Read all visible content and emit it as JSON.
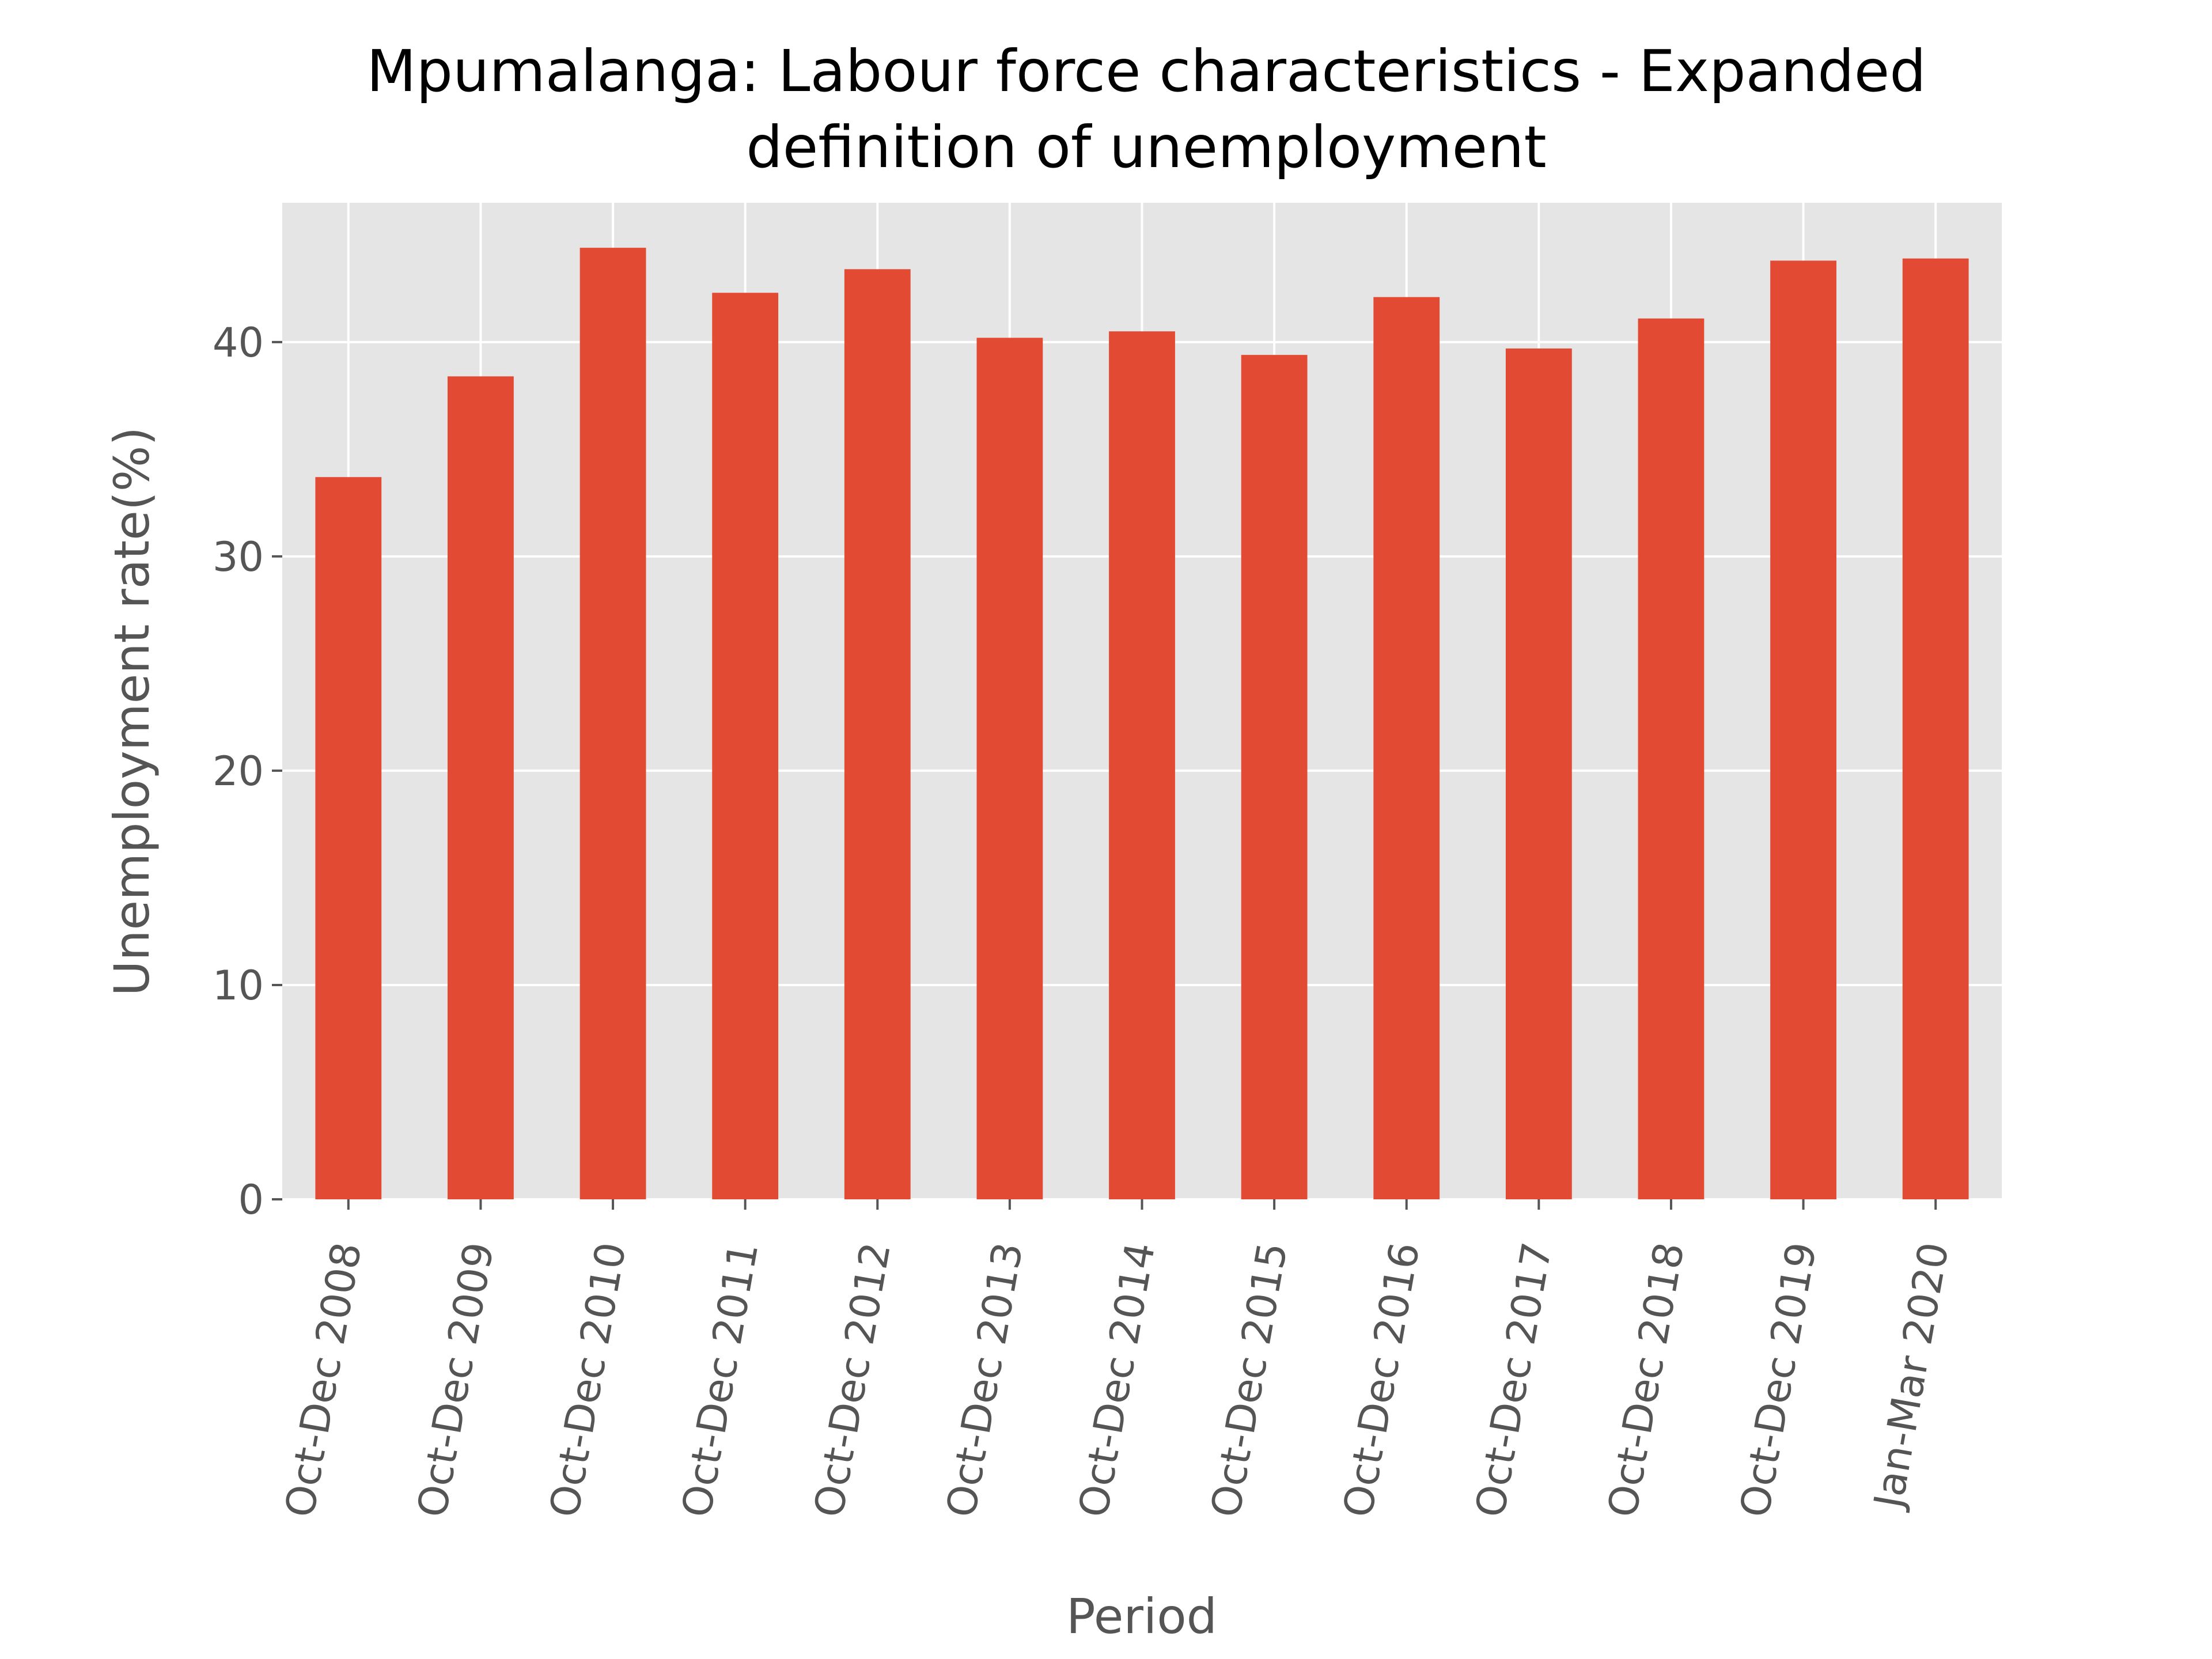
{
  "chart_data": {
    "type": "bar",
    "title_lines": [
      "Mpumalanga: Labour force characteristics - Expanded",
      "definition of unemployment"
    ],
    "xlabel": "Period",
    "ylabel": "Unemployment rate(%)",
    "categories": [
      "Oct-Dec 2008",
      "Oct-Dec 2009",
      "Oct-Dec 2010",
      "Oct-Dec 2011",
      "Oct-Dec 2012",
      "Oct-Dec 2013",
      "Oct-Dec 2014",
      "Oct-Dec 2015",
      "Oct-Dec 2016",
      "Oct-Dec 2017",
      "Oct-Dec 2018",
      "Oct-Dec 2019",
      "Jan-Mar 2020"
    ],
    "values": [
      33.7,
      38.4,
      44.4,
      42.3,
      43.4,
      40.2,
      40.5,
      39.4,
      42.1,
      39.7,
      41.1,
      43.8,
      43.9
    ],
    "ylim": [
      0,
      46.5
    ],
    "yticks": [
      0,
      10,
      20,
      30,
      40
    ],
    "grid": true,
    "legend": "none",
    "colors": {
      "bar": "#E24A33",
      "plot_background": "#E5E5E5",
      "grid": "#FFFFFF",
      "tick_text": "#555555",
      "title_text": "#000000"
    }
  }
}
